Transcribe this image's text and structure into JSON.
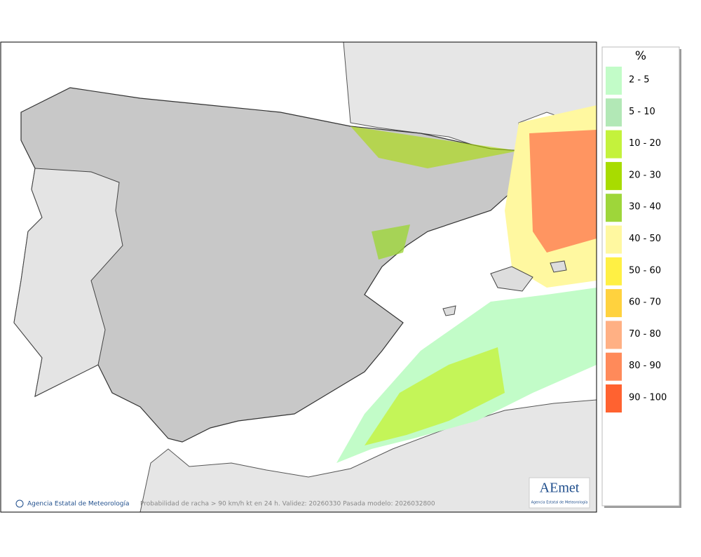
{
  "legend": {
    "title": "%",
    "items": [
      {
        "label": "2 - 5",
        "color": "#c2fcc8"
      },
      {
        "label": "5 - 10",
        "color": "#b2e8b6"
      },
      {
        "label": "10 - 20",
        "color": "#c4f23c"
      },
      {
        "label": "20 - 30",
        "color": "#a8dc00"
      },
      {
        "label": "30 - 40",
        "color": "#9ed63a"
      },
      {
        "label": "40 - 50",
        "color": "#fff8a0"
      },
      {
        "label": "50 - 60",
        "color": "#fff044"
      },
      {
        "label": "60 - 70",
        "color": "#ffd23e"
      },
      {
        "label": "70 - 80",
        "color": "#ffb084"
      },
      {
        "label": "80 - 90",
        "color": "#ff8a5a"
      },
      {
        "label": "90 - 100",
        "color": "#ff6230"
      }
    ]
  },
  "footer": {
    "credit": "Agencia Estatal de Meteorología",
    "caption": "Probabilidad de racha > 90 km/h kt en 24 h. Validez: 20260330 Pasada modelo: 2026032800"
  },
  "logo": {
    "name": "AEmet",
    "subtitle": "Agencia Estatal de Meteorología"
  }
}
